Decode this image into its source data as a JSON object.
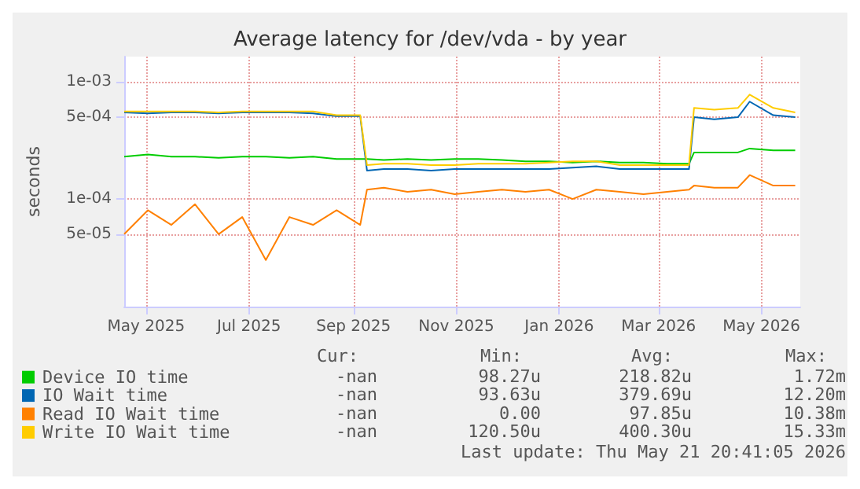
{
  "chart_data": {
    "type": "line",
    "title": "Average latency for /dev/vda - by year",
    "ylabel": "seconds",
    "x": [
      "2025-04-18",
      "2025-05-02",
      "2025-05-16",
      "2025-05-30",
      "2025-06-13",
      "2025-06-27",
      "2025-07-11",
      "2025-07-25",
      "2025-08-08",
      "2025-08-22",
      "2025-09-05",
      "2025-09-09",
      "2025-09-19",
      "2025-10-03",
      "2025-10-17",
      "2025-10-31",
      "2025-11-14",
      "2025-11-28",
      "2025-12-12",
      "2025-12-26",
      "2026-01-09",
      "2026-01-23",
      "2026-02-06",
      "2026-02-20",
      "2026-03-06",
      "2026-03-19",
      "2026-03-22",
      "2026-04-03",
      "2026-04-17",
      "2026-04-24",
      "2026-05-08",
      "2026-05-21"
    ],
    "series": [
      {
        "name": "Device IO time",
        "color": "#00cc00",
        "values": [
          0.00023,
          0.00024,
          0.00023,
          0.00023,
          0.000225,
          0.00023,
          0.00023,
          0.000225,
          0.00023,
          0.00022,
          0.00022,
          0.00022,
          0.000215,
          0.00022,
          0.000215,
          0.00022,
          0.00022,
          0.000215,
          0.00021,
          0.00021,
          0.000205,
          0.00021,
          0.000205,
          0.000205,
          0.0002,
          0.0002,
          0.00025,
          0.00025,
          0.00025,
          0.00027,
          0.00026,
          0.00026
        ]
      },
      {
        "name": "IO Wait time",
        "color": "#0066b3",
        "values": [
          0.00055,
          0.00054,
          0.00055,
          0.00055,
          0.00054,
          0.00055,
          0.00055,
          0.00055,
          0.00054,
          0.00051,
          0.00051,
          0.000175,
          0.00018,
          0.00018,
          0.000175,
          0.00018,
          0.00018,
          0.00018,
          0.00018,
          0.00018,
          0.000185,
          0.00019,
          0.00018,
          0.00018,
          0.00018,
          0.00018,
          0.0005,
          0.00048,
          0.0005,
          0.00068,
          0.00052,
          0.0005
        ]
      },
      {
        "name": "Read IO Wait time",
        "color": "#ff8000",
        "values": [
          5e-05,
          8e-05,
          6e-05,
          9e-05,
          5e-05,
          7e-05,
          3e-05,
          7e-05,
          6e-05,
          8e-05,
          6e-05,
          0.00012,
          0.000125,
          0.000115,
          0.00012,
          0.00011,
          0.000115,
          0.00012,
          0.000115,
          0.00012,
          0.0001,
          0.00012,
          0.000115,
          0.00011,
          0.000115,
          0.00012,
          0.00013,
          0.000125,
          0.000125,
          0.00016,
          0.00013,
          0.00013
        ]
      },
      {
        "name": "Write IO Wait time",
        "color": "#ffcc00",
        "values": [
          0.00056,
          0.00056,
          0.00056,
          0.00056,
          0.00055,
          0.00056,
          0.00056,
          0.00056,
          0.00056,
          0.00052,
          0.00052,
          0.000195,
          0.0002,
          0.0002,
          0.000195,
          0.000195,
          0.0002,
          0.0002,
          0.0002,
          0.000205,
          0.00021,
          0.00021,
          0.000195,
          0.000195,
          0.000195,
          0.000195,
          0.0006,
          0.00058,
          0.0006,
          0.00078,
          0.0006,
          0.00055
        ]
      }
    ],
    "log": "y",
    "ylim": [
      1.2e-05,
      0.00165
    ],
    "yticks": [
      {
        "value": 0.001,
        "label": "1e-03"
      },
      {
        "value": 0.0005,
        "label": "5e-04"
      },
      {
        "value": 0.0001,
        "label": "1e-04"
      },
      {
        "value": 5e-05,
        "label": "5e-05"
      }
    ],
    "xlim": [
      "2025-04-18",
      "2026-05-24"
    ],
    "xticks": [
      {
        "value": "2025-05-01",
        "label": "May 2025"
      },
      {
        "value": "2025-07-01",
        "label": "Jul 2025"
      },
      {
        "value": "2025-09-01",
        "label": "Sep 2025"
      },
      {
        "value": "2025-11-01",
        "label": "Nov 2025"
      },
      {
        "value": "2026-01-01",
        "label": "Jan 2026"
      },
      {
        "value": "2026-03-01",
        "label": "Mar 2026"
      },
      {
        "value": "2026-05-01",
        "label": "May 2026"
      }
    ],
    "grid": true,
    "legend": "bottom left",
    "marker": "none",
    "line_style": "solid",
    "annotations": [
      "Cur:",
      "Min:",
      "Avg:",
      "Max:",
      "-nan",
      "98.27u",
      "218.82u",
      "1.72m",
      "-nan",
      "93.63u",
      "379.69u",
      "12.20m",
      "-nan",
      "0.00",
      "97.85u",
      "10.38m",
      "-nan",
      "120.50u",
      "400.30u",
      "15.33m",
      "Last update: Thu May 21 20:41:05 2026"
    ]
  }
}
